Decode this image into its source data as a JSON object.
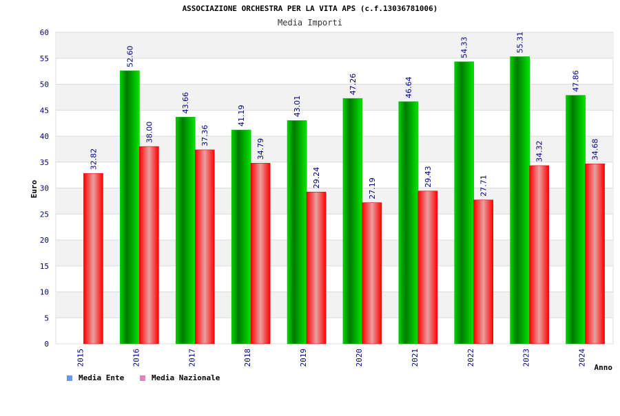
{
  "chart_data": {
    "type": "bar",
    "title": "ASSOCIAZIONE ORCHESTRA PER LA VITA APS (c.f.13036781006)",
    "subtitle": "Media Importi",
    "ylabel": "Euro",
    "xlabel": "Anno",
    "ylim": [
      0,
      60
    ],
    "ytick_step": 5,
    "categories": [
      "2015",
      "2016",
      "2017",
      "2018",
      "2019",
      "2020",
      "2021",
      "2022",
      "2023",
      "2024"
    ],
    "series": [
      {
        "name": "Media Ente",
        "color": "#00cc00",
        "values": [
          null,
          52.6,
          43.66,
          41.19,
          43.01,
          47.26,
          46.64,
          54.33,
          55.31,
          47.86
        ],
        "labels": [
          "",
          "52.60",
          "43.66",
          "41.19",
          "43.01",
          "47.26",
          "46.64",
          "54.33",
          "55.31",
          "47.86"
        ]
      },
      {
        "name": "Media Nazionale",
        "color": "#ee0000",
        "values": [
          32.82,
          38.0,
          37.36,
          34.79,
          29.24,
          27.19,
          29.43,
          27.71,
          34.32,
          34.68
        ],
        "labels": [
          "32.82",
          "38.00",
          "37.36",
          "34.79",
          "29.24",
          "27.19",
          "29.43",
          "27.71",
          "34.32",
          "34.68"
        ]
      }
    ],
    "legend_position": "bottom-left",
    "legend_colors": [
      "#6699ee",
      "#dd88bb"
    ],
    "grid": true
  }
}
